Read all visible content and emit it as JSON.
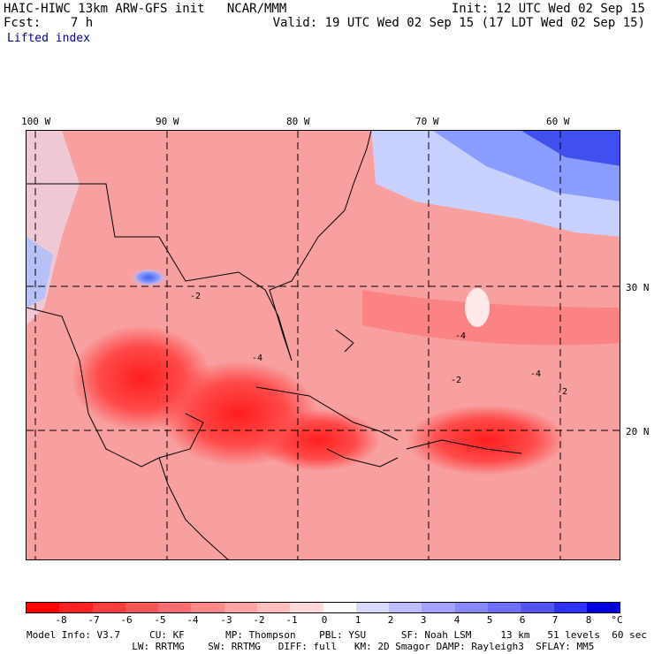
{
  "header": {
    "title": "HAIC-HIWC 13km ARW-GFS init   NCAR/MMM",
    "fcst": "Fcst:    7 h",
    "init": "Init: 12 UTC Wed 02 Sep 15",
    "valid": "Valid: 19 UTC Wed 02 Sep 15 (17 LDT Wed 02 Sep 15)",
    "variable": "Lifted index"
  },
  "map": {
    "lon_labels": [
      "100 W",
      "90 W",
      "80 W",
      "70 W",
      "60 W"
    ],
    "lat_labels": [
      "30 N",
      "20 N"
    ],
    "contour_labels": [
      "-2",
      "-4",
      "-2",
      "-4",
      "-2",
      "-4"
    ]
  },
  "colorbar": {
    "labels": [
      "-8",
      "-7",
      "-6",
      "-5",
      "-4",
      "-3",
      "-2",
      "-1",
      "0",
      "1",
      "2",
      "3",
      "4",
      "5",
      "6",
      "7",
      "8"
    ],
    "unit": "°C",
    "colors": [
      "#ff0000",
      "#ff2020",
      "#ff3d3d",
      "#ff5555",
      "#ff6e6e",
      "#ff8888",
      "#ffa3a3",
      "#ffbebe",
      "#ffd9d9",
      "#ffffff",
      "#d9d9ff",
      "#bebeff",
      "#a3a3ff",
      "#8888ff",
      "#6e6eff",
      "#5555ff",
      "#3030ff",
      "#0000e0"
    ]
  },
  "info": {
    "line1": "Model Info: V3.7     CU: KF       MP: Thompson    PBL: YSU      SF: Noah LSM     13 km   51 levels  60 sec",
    "line2": "                  LW: RRTMG    SW: RRTMG   DIFF: full   KM: 2D Smagor DAMP: Rayleigh3  SFLAY: MM5"
  }
}
